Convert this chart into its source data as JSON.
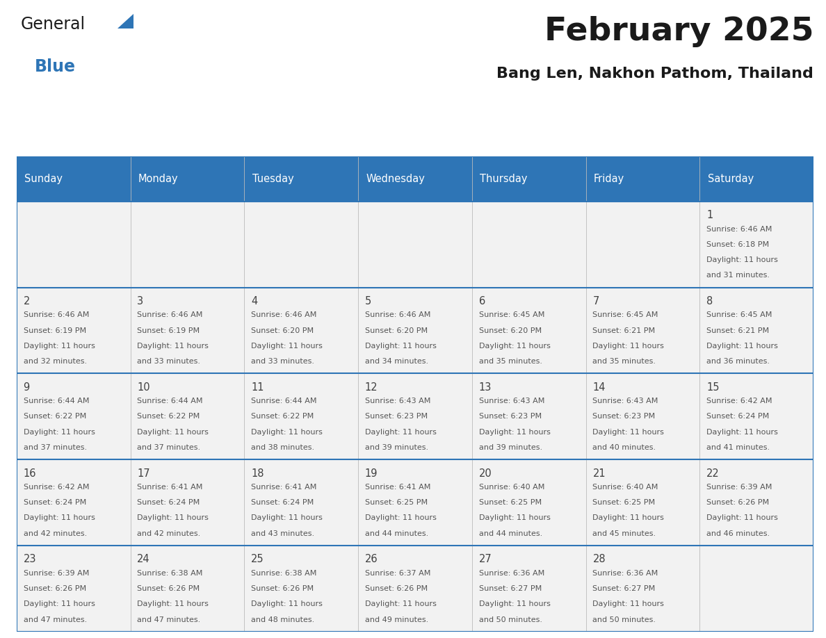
{
  "title": "February 2025",
  "subtitle": "Bang Len, Nakhon Pathom, Thailand",
  "header_bg": "#2E75B6",
  "header_text": "#FFFFFF",
  "cell_bg": "#F2F2F2",
  "border_color": "#2E75B6",
  "text_color": "#404040",
  "day_names": [
    "Sunday",
    "Monday",
    "Tuesday",
    "Wednesday",
    "Thursday",
    "Friday",
    "Saturday"
  ],
  "title_color": "#1a1a1a",
  "subtitle_color": "#1a1a1a",
  "logo_black": "#1a1a1a",
  "logo_blue": "#2E75B6",
  "days": [
    {
      "date": 1,
      "col": 6,
      "row": 0,
      "sunrise": "6:46 AM",
      "sunset": "6:18 PM",
      "daylight_hrs": 11,
      "daylight_min": 31
    },
    {
      "date": 2,
      "col": 0,
      "row": 1,
      "sunrise": "6:46 AM",
      "sunset": "6:19 PM",
      "daylight_hrs": 11,
      "daylight_min": 32
    },
    {
      "date": 3,
      "col": 1,
      "row": 1,
      "sunrise": "6:46 AM",
      "sunset": "6:19 PM",
      "daylight_hrs": 11,
      "daylight_min": 33
    },
    {
      "date": 4,
      "col": 2,
      "row": 1,
      "sunrise": "6:46 AM",
      "sunset": "6:20 PM",
      "daylight_hrs": 11,
      "daylight_min": 33
    },
    {
      "date": 5,
      "col": 3,
      "row": 1,
      "sunrise": "6:46 AM",
      "sunset": "6:20 PM",
      "daylight_hrs": 11,
      "daylight_min": 34
    },
    {
      "date": 6,
      "col": 4,
      "row": 1,
      "sunrise": "6:45 AM",
      "sunset": "6:20 PM",
      "daylight_hrs": 11,
      "daylight_min": 35
    },
    {
      "date": 7,
      "col": 5,
      "row": 1,
      "sunrise": "6:45 AM",
      "sunset": "6:21 PM",
      "daylight_hrs": 11,
      "daylight_min": 35
    },
    {
      "date": 8,
      "col": 6,
      "row": 1,
      "sunrise": "6:45 AM",
      "sunset": "6:21 PM",
      "daylight_hrs": 11,
      "daylight_min": 36
    },
    {
      "date": 9,
      "col": 0,
      "row": 2,
      "sunrise": "6:44 AM",
      "sunset": "6:22 PM",
      "daylight_hrs": 11,
      "daylight_min": 37
    },
    {
      "date": 10,
      "col": 1,
      "row": 2,
      "sunrise": "6:44 AM",
      "sunset": "6:22 PM",
      "daylight_hrs": 11,
      "daylight_min": 37
    },
    {
      "date": 11,
      "col": 2,
      "row": 2,
      "sunrise": "6:44 AM",
      "sunset": "6:22 PM",
      "daylight_hrs": 11,
      "daylight_min": 38
    },
    {
      "date": 12,
      "col": 3,
      "row": 2,
      "sunrise": "6:43 AM",
      "sunset": "6:23 PM",
      "daylight_hrs": 11,
      "daylight_min": 39
    },
    {
      "date": 13,
      "col": 4,
      "row": 2,
      "sunrise": "6:43 AM",
      "sunset": "6:23 PM",
      "daylight_hrs": 11,
      "daylight_min": 39
    },
    {
      "date": 14,
      "col": 5,
      "row": 2,
      "sunrise": "6:43 AM",
      "sunset": "6:23 PM",
      "daylight_hrs": 11,
      "daylight_min": 40
    },
    {
      "date": 15,
      "col": 6,
      "row": 2,
      "sunrise": "6:42 AM",
      "sunset": "6:24 PM",
      "daylight_hrs": 11,
      "daylight_min": 41
    },
    {
      "date": 16,
      "col": 0,
      "row": 3,
      "sunrise": "6:42 AM",
      "sunset": "6:24 PM",
      "daylight_hrs": 11,
      "daylight_min": 42
    },
    {
      "date": 17,
      "col": 1,
      "row": 3,
      "sunrise": "6:41 AM",
      "sunset": "6:24 PM",
      "daylight_hrs": 11,
      "daylight_min": 42
    },
    {
      "date": 18,
      "col": 2,
      "row": 3,
      "sunrise": "6:41 AM",
      "sunset": "6:24 PM",
      "daylight_hrs": 11,
      "daylight_min": 43
    },
    {
      "date": 19,
      "col": 3,
      "row": 3,
      "sunrise": "6:41 AM",
      "sunset": "6:25 PM",
      "daylight_hrs": 11,
      "daylight_min": 44
    },
    {
      "date": 20,
      "col": 4,
      "row": 3,
      "sunrise": "6:40 AM",
      "sunset": "6:25 PM",
      "daylight_hrs": 11,
      "daylight_min": 44
    },
    {
      "date": 21,
      "col": 5,
      "row": 3,
      "sunrise": "6:40 AM",
      "sunset": "6:25 PM",
      "daylight_hrs": 11,
      "daylight_min": 45
    },
    {
      "date": 22,
      "col": 6,
      "row": 3,
      "sunrise": "6:39 AM",
      "sunset": "6:26 PM",
      "daylight_hrs": 11,
      "daylight_min": 46
    },
    {
      "date": 23,
      "col": 0,
      "row": 4,
      "sunrise": "6:39 AM",
      "sunset": "6:26 PM",
      "daylight_hrs": 11,
      "daylight_min": 47
    },
    {
      "date": 24,
      "col": 1,
      "row": 4,
      "sunrise": "6:38 AM",
      "sunset": "6:26 PM",
      "daylight_hrs": 11,
      "daylight_min": 47
    },
    {
      "date": 25,
      "col": 2,
      "row": 4,
      "sunrise": "6:38 AM",
      "sunset": "6:26 PM",
      "daylight_hrs": 11,
      "daylight_min": 48
    },
    {
      "date": 26,
      "col": 3,
      "row": 4,
      "sunrise": "6:37 AM",
      "sunset": "6:26 PM",
      "daylight_hrs": 11,
      "daylight_min": 49
    },
    {
      "date": 27,
      "col": 4,
      "row": 4,
      "sunrise": "6:36 AM",
      "sunset": "6:27 PM",
      "daylight_hrs": 11,
      "daylight_min": 50
    },
    {
      "date": 28,
      "col": 5,
      "row": 4,
      "sunrise": "6:36 AM",
      "sunset": "6:27 PM",
      "daylight_hrs": 11,
      "daylight_min": 50
    }
  ]
}
